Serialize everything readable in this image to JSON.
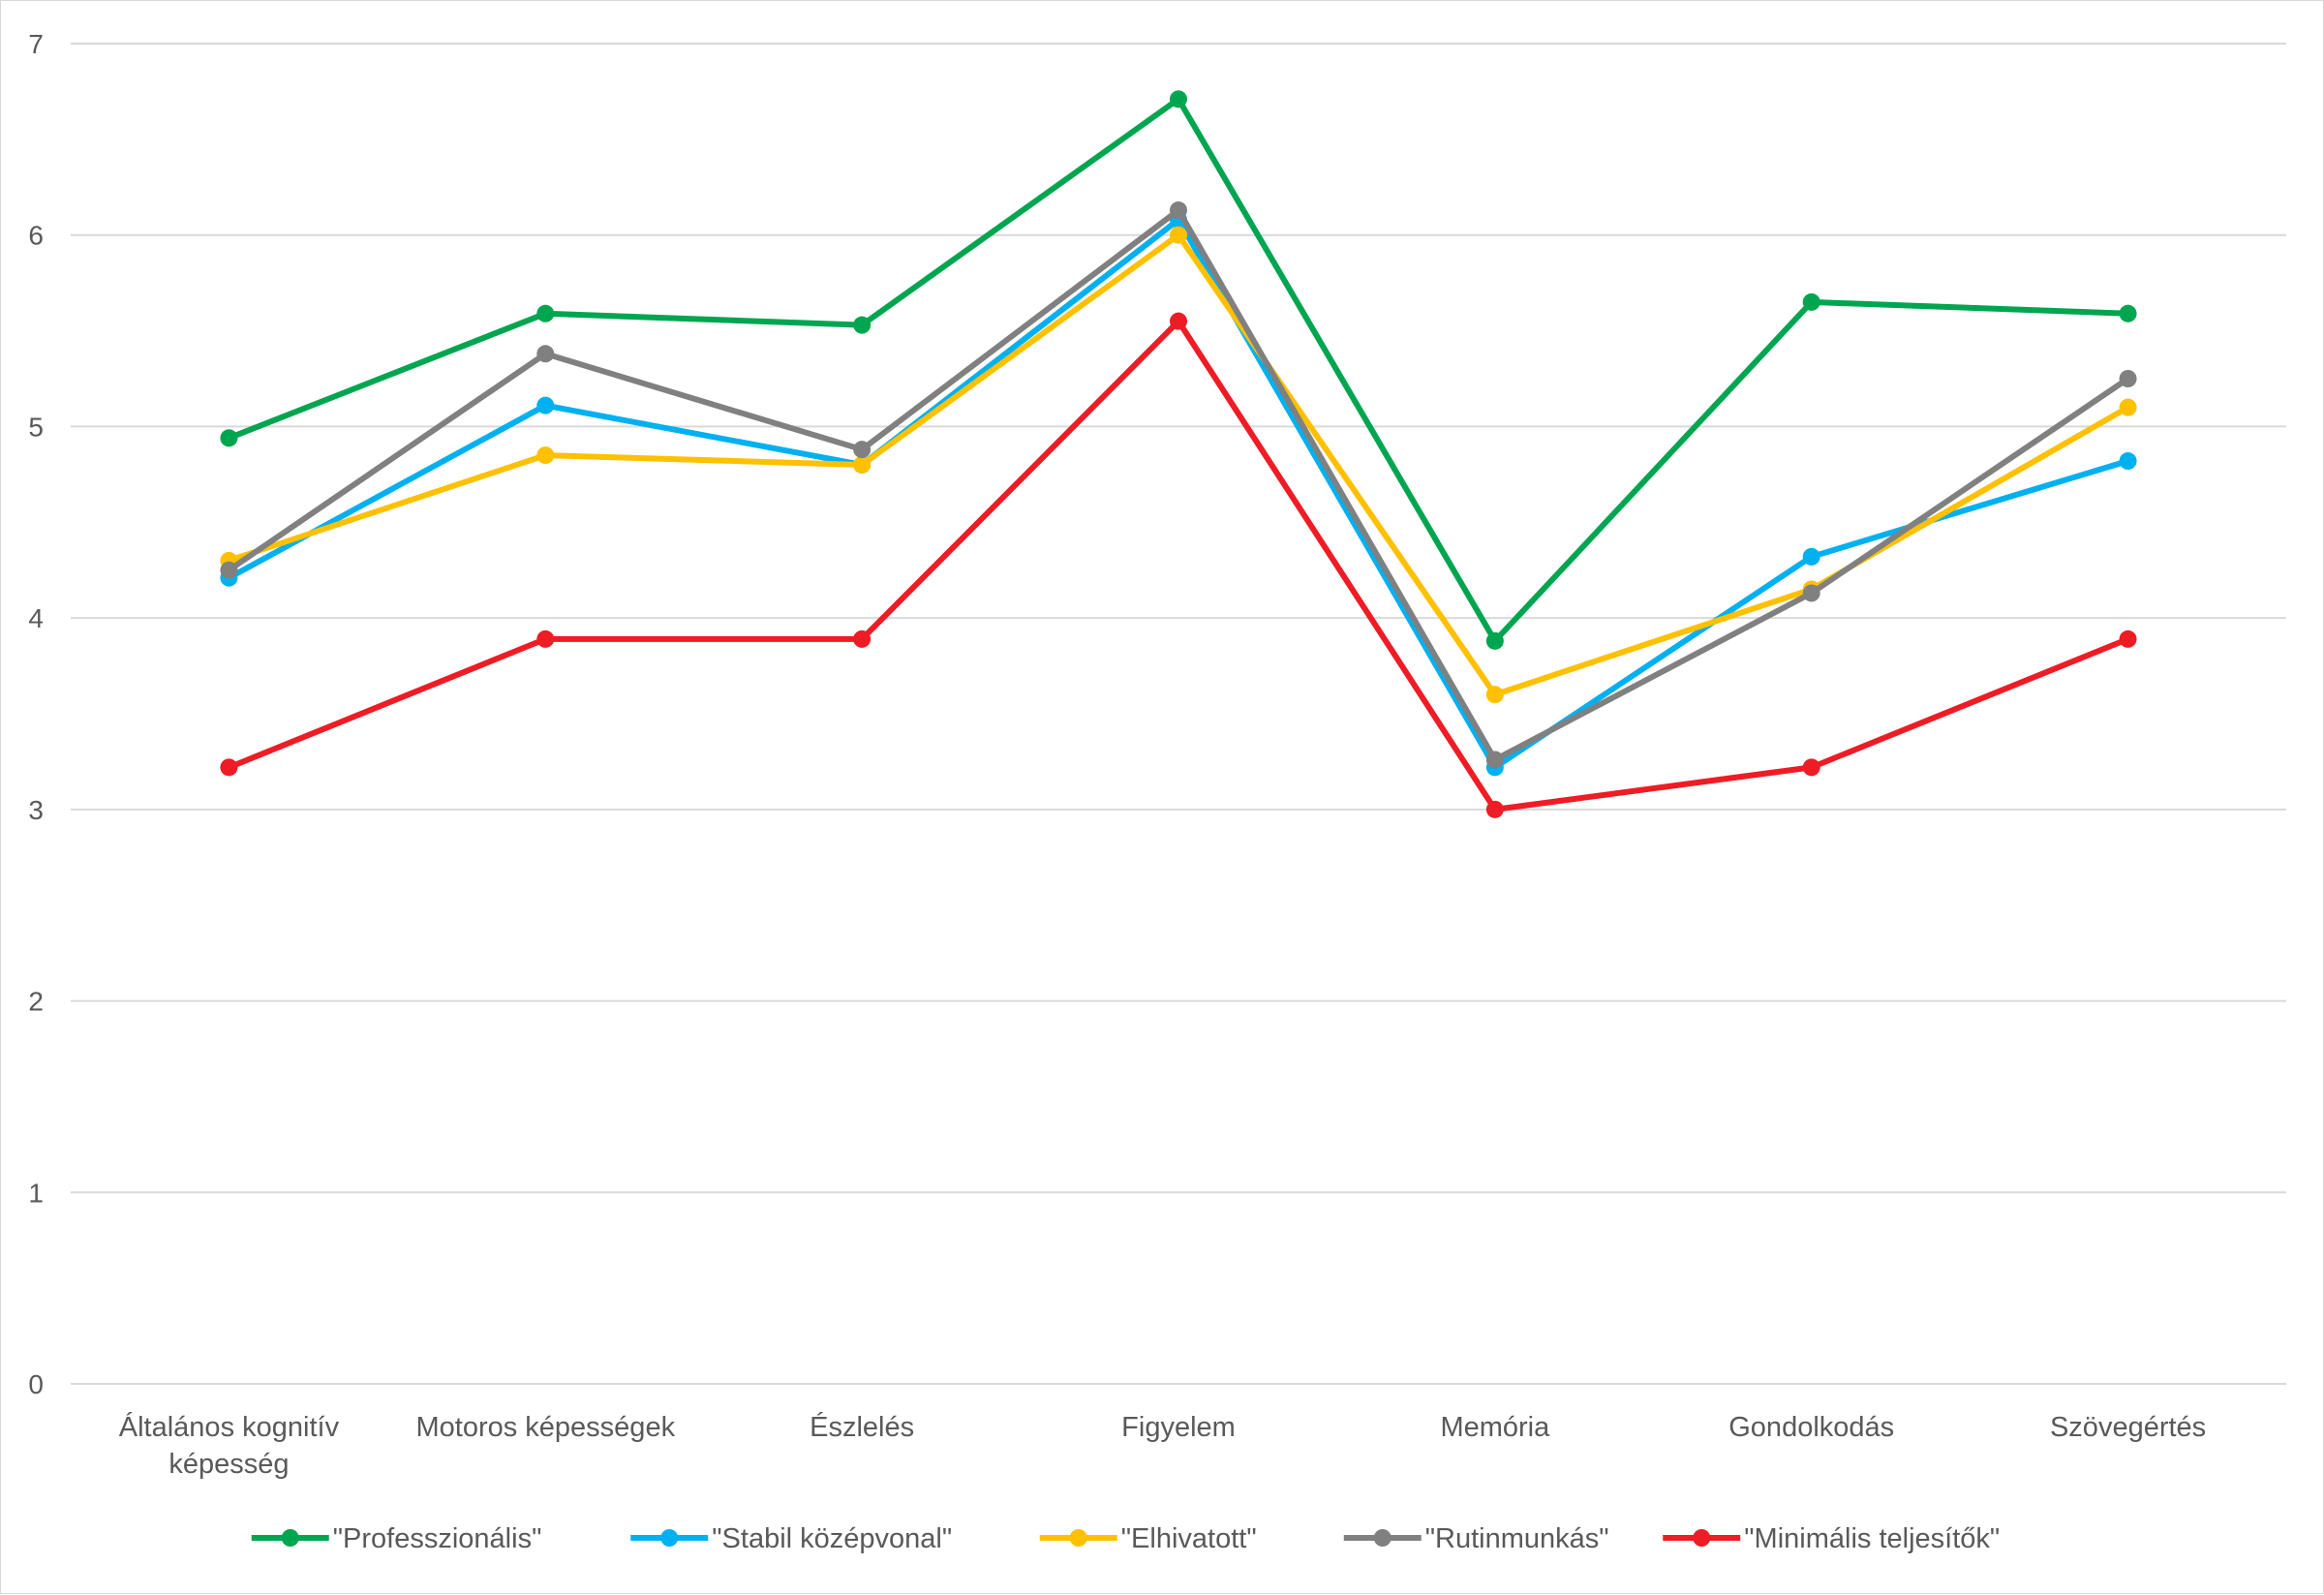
{
  "chart_data": {
    "type": "line",
    "title": "",
    "xlabel": "",
    "ylabel": "",
    "ylim": [
      0,
      7
    ],
    "yticks": [
      0,
      1,
      2,
      3,
      4,
      5,
      6,
      7
    ],
    "grid": true,
    "legend_position": "bottom",
    "categories": [
      [
        "Általános kognitív",
        "képesség"
      ],
      [
        "Motoros képességek"
      ],
      [
        "Észlelés"
      ],
      [
        "Figyelem"
      ],
      [
        "Memória"
      ],
      [
        "Gondolkodás"
      ],
      [
        "Szövegértés"
      ]
    ],
    "series": [
      {
        "name": "\"Professzionális\"",
        "color": "#00a550",
        "values": [
          4.94,
          5.59,
          5.53,
          6.71,
          3.88,
          5.65,
          5.59
        ]
      },
      {
        "name": "\"Stabil középvonal\"",
        "color": "#00b0f0",
        "values": [
          4.21,
          5.11,
          4.8,
          6.08,
          3.22,
          4.32,
          4.82
        ]
      },
      {
        "name": "\"Elhivatott\"",
        "color": "#ffc000",
        "values": [
          4.3,
          4.85,
          4.8,
          6.0,
          3.6,
          4.15,
          5.1
        ]
      },
      {
        "name": "\"Rutinmunkás\"",
        "color": "#808080",
        "values": [
          4.25,
          5.38,
          4.88,
          6.13,
          3.26,
          4.13,
          5.25
        ]
      },
      {
        "name": "\"Minimális teljesítők\"",
        "color": "#ee1c25",
        "values": [
          3.22,
          3.89,
          3.89,
          5.55,
          3.0,
          3.22,
          3.89
        ]
      }
    ]
  }
}
